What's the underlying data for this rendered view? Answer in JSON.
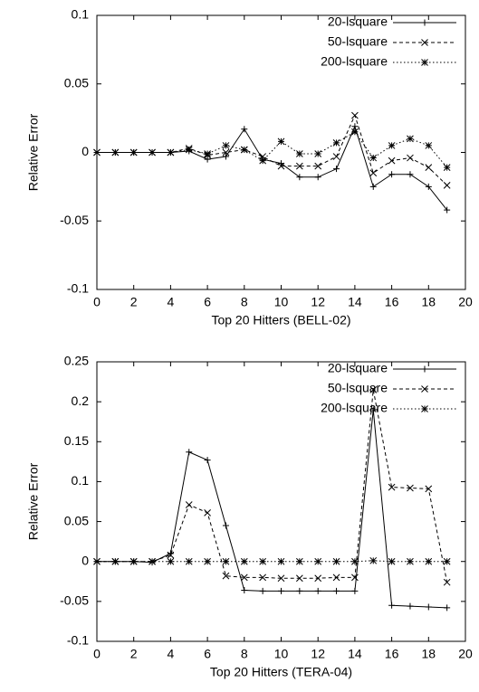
{
  "chart_data": [
    {
      "type": "line",
      "xlabel": "Top 20 Hitters (BELL-02)",
      "ylabel": "Relative Error",
      "x": [
        0,
        1,
        2,
        3,
        4,
        5,
        6,
        7,
        8,
        9,
        10,
        11,
        12,
        13,
        14,
        15,
        16,
        17,
        18,
        19
      ],
      "xlim": [
        0,
        20
      ],
      "xticks": [
        0,
        2,
        4,
        6,
        8,
        10,
        12,
        14,
        16,
        18,
        20
      ],
      "ylim": [
        -0.1,
        0.1
      ],
      "yticks": [
        -0.1,
        -0.05,
        0,
        0.05,
        0.1
      ],
      "legend": "upper right",
      "series": [
        {
          "name": "20-lsquare",
          "color": "#000000",
          "linestyle": "solid",
          "marker": "+",
          "values": [
            0,
            0,
            0,
            0,
            0,
            0.001,
            -0.005,
            -0.003,
            0.017,
            -0.005,
            -0.008,
            -0.018,
            -0.018,
            -0.012,
            0.019,
            -0.025,
            -0.016,
            -0.016,
            -0.025,
            -0.042
          ]
        },
        {
          "name": "50-lsquare",
          "color": "#000000",
          "linestyle": "dashed",
          "marker": "x",
          "values": [
            0,
            0,
            0,
            0,
            0,
            0.003,
            -0.002,
            0,
            0.002,
            -0.003,
            -0.01,
            -0.01,
            -0.01,
            -0.003,
            0.027,
            -0.015,
            -0.006,
            -0.004,
            -0.011,
            -0.024
          ]
        },
        {
          "name": "200-lsquare",
          "color": "#000000",
          "linestyle": "dotted",
          "marker": "*",
          "values": [
            0,
            0,
            0,
            0,
            0,
            0.002,
            -0.001,
            0.005,
            0.002,
            -0.006,
            0.008,
            -0.001,
            -0.001,
            0.007,
            0.015,
            -0.004,
            0.005,
            0.01,
            0.005,
            -0.011
          ]
        }
      ]
    },
    {
      "type": "line",
      "xlabel": "Top 20 Hitters (TERA-04)",
      "ylabel": "Relative Error",
      "x": [
        0,
        1,
        2,
        3,
        4,
        5,
        6,
        7,
        8,
        9,
        10,
        11,
        12,
        13,
        14,
        15,
        16,
        17,
        18,
        19
      ],
      "xlim": [
        0,
        20
      ],
      "xticks": [
        0,
        2,
        4,
        6,
        8,
        10,
        12,
        14,
        16,
        18,
        20
      ],
      "ylim": [
        -0.1,
        0.25
      ],
      "yticks": [
        -0.1,
        -0.05,
        0,
        0.05,
        0.1,
        0.15,
        0.2,
        0.25
      ],
      "legend": "upper right",
      "series": [
        {
          "name": "20-lsquare",
          "color": "#000000",
          "linestyle": "solid",
          "marker": "+",
          "values": [
            0,
            0,
            0,
            -0.001,
            0.01,
            0.137,
            0.127,
            0.045,
            -0.036,
            -0.037,
            -0.037,
            -0.037,
            -0.037,
            -0.037,
            -0.037,
            0.19,
            -0.055,
            -0.056,
            -0.057,
            -0.058
          ]
        },
        {
          "name": "50-lsquare",
          "color": "#000000",
          "linestyle": "dashed",
          "marker": "x",
          "values": [
            0,
            0,
            0,
            0,
            0.008,
            0.071,
            0.061,
            -0.018,
            -0.02,
            -0.02,
            -0.021,
            -0.021,
            -0.021,
            -0.02,
            -0.02,
            0.215,
            0.093,
            0.092,
            0.091,
            -0.026
          ]
        },
        {
          "name": "200-lsquare",
          "color": "#000000",
          "linestyle": "dotted",
          "marker": "*",
          "values": [
            0,
            0,
            0,
            0,
            0,
            0,
            0,
            0,
            0,
            0,
            0,
            0,
            0,
            0,
            0,
            0.001,
            0,
            0,
            0,
            0
          ]
        }
      ]
    }
  ]
}
